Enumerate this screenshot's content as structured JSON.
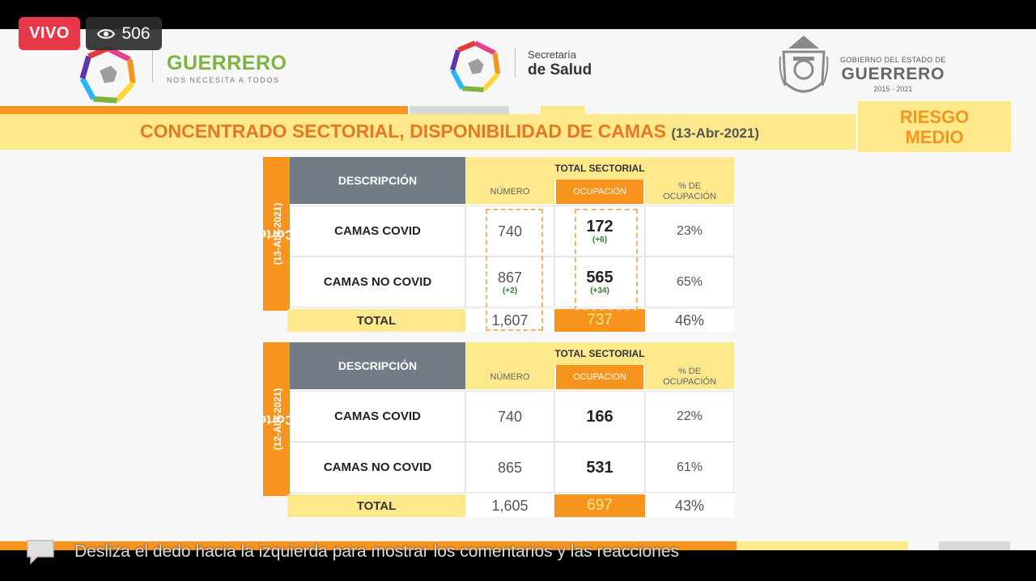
{
  "live": {
    "label": "VIVO",
    "viewers": "506",
    "icon": "eye-icon"
  },
  "header": {
    "left_brand": {
      "name": "GUERRERO",
      "tagline": "NOS NECESITA A TODOS"
    },
    "mid_brand": {
      "line1": "Secretaría",
      "line2": "de Salud"
    },
    "right_brand": {
      "line1": "GOBIERNO DEL ESTADO DE",
      "line2": "GUERRERO",
      "line3": "2015 - 2021"
    }
  },
  "title": {
    "main": "CONCENTRADO SECTORIAL, DISPONIBILIDAD DE CAMAS",
    "date": "(13-Abr-2021)"
  },
  "risk": {
    "line1": "RIESGO",
    "line2": "MEDIO"
  },
  "columns": {
    "desc": "DESCRIPCIÓN",
    "total": "TOTAL SECTORIAL",
    "numero": "NÚMERO",
    "ocupacion": "OCUPACIÓN",
    "pct_line1": "% DE",
    "pct_line2": "OCUPACIÓN"
  },
  "tables": [
    {
      "side_label": "Corte",
      "side_date": "(13-Abr-2021)",
      "rows": [
        {
          "label": "CAMAS COVID",
          "numero": "740",
          "numero_delta": "",
          "ocupacion": "172",
          "ocupacion_delta": "(+6)",
          "pct": "23%"
        },
        {
          "label": "CAMAS NO COVID",
          "numero": "867",
          "numero_delta": "(+2)",
          "ocupacion": "565",
          "ocupacion_delta": "(+34)",
          "pct": "65%"
        }
      ],
      "total": {
        "label": "TOTAL",
        "numero": "1,607",
        "ocupacion": "737",
        "pct": "46%"
      }
    },
    {
      "side_label": "Corte",
      "side_date": "(12-Abr-2021)",
      "rows": [
        {
          "label": "CAMAS COVID",
          "numero": "740",
          "numero_delta": "",
          "ocupacion": "166",
          "ocupacion_delta": "",
          "pct": "22%"
        },
        {
          "label": "CAMAS NO COVID",
          "numero": "865",
          "numero_delta": "",
          "ocupacion": "531",
          "ocupacion_delta": "",
          "pct": "61%"
        }
      ],
      "total": {
        "label": "TOTAL",
        "numero": "1,605",
        "ocupacion": "697",
        "pct": "43%"
      }
    }
  ],
  "footer": {
    "swipe_hint": "Desliza el dedo hacia la izquierda para mostrar los comentarios y las reacciones",
    "icon": "comment-icon"
  },
  "colors": {
    "orange": "#f7941d",
    "yellow": "#fde98b",
    "gray_header": "#737b84",
    "live_red": "#e8394a",
    "green_delta": "#2e7d32"
  }
}
